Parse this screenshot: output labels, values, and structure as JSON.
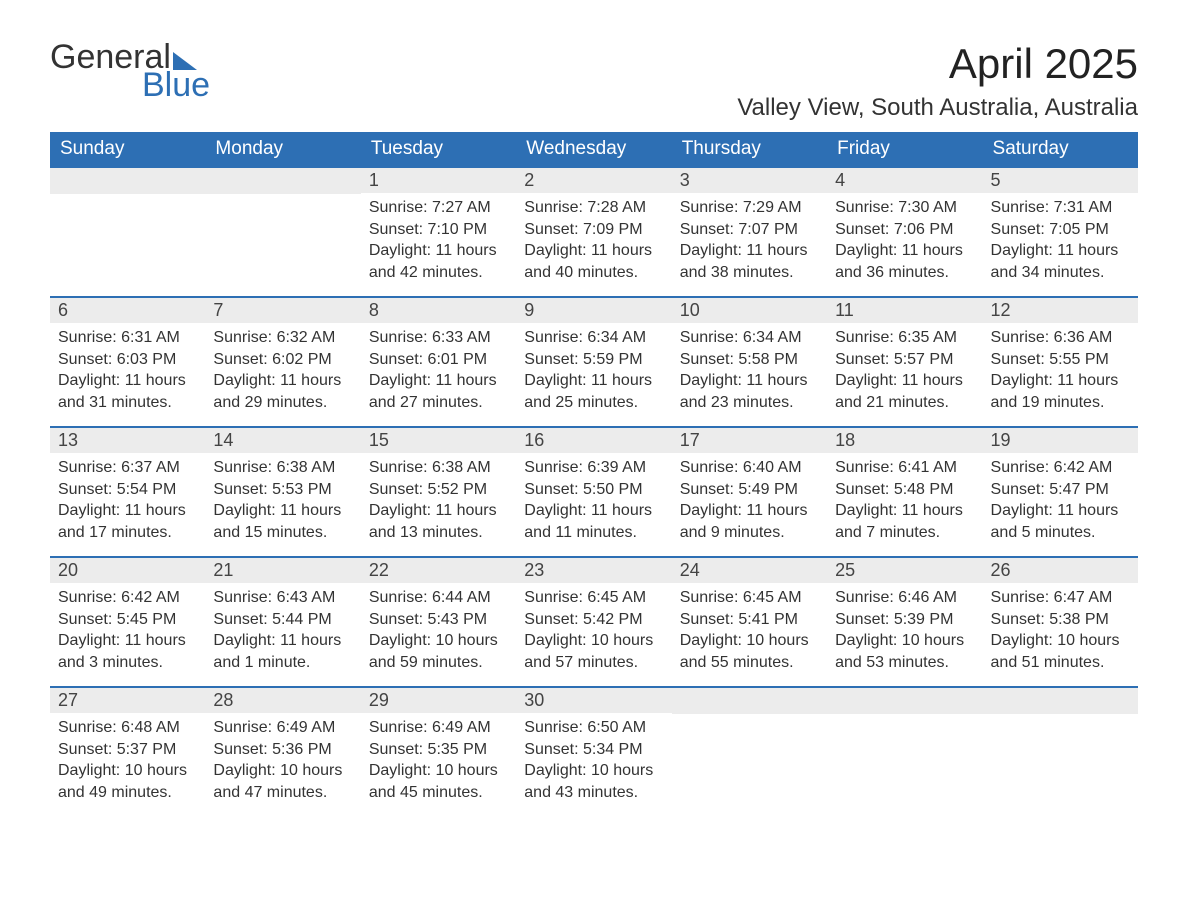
{
  "brand": {
    "word1": "General",
    "word2": "Blue"
  },
  "title": "April 2025",
  "location": "Valley View, South Australia, Australia",
  "colors": {
    "header_bg": "#2d6fb4",
    "header_text": "#ffffff",
    "daynum_bg": "#ececec",
    "border": "#2d6fb4",
    "text": "#333333",
    "background": "#ffffff"
  },
  "day_headers": [
    "Sunday",
    "Monday",
    "Tuesday",
    "Wednesday",
    "Thursday",
    "Friday",
    "Saturday"
  ],
  "weeks": [
    [
      null,
      null,
      {
        "n": "1",
        "sunrise": "7:27 AM",
        "sunset": "7:10 PM",
        "daylight": "11 hours and 42 minutes."
      },
      {
        "n": "2",
        "sunrise": "7:28 AM",
        "sunset": "7:09 PM",
        "daylight": "11 hours and 40 minutes."
      },
      {
        "n": "3",
        "sunrise": "7:29 AM",
        "sunset": "7:07 PM",
        "daylight": "11 hours and 38 minutes."
      },
      {
        "n": "4",
        "sunrise": "7:30 AM",
        "sunset": "7:06 PM",
        "daylight": "11 hours and 36 minutes."
      },
      {
        "n": "5",
        "sunrise": "7:31 AM",
        "sunset": "7:05 PM",
        "daylight": "11 hours and 34 minutes."
      }
    ],
    [
      {
        "n": "6",
        "sunrise": "6:31 AM",
        "sunset": "6:03 PM",
        "daylight": "11 hours and 31 minutes."
      },
      {
        "n": "7",
        "sunrise": "6:32 AM",
        "sunset": "6:02 PM",
        "daylight": "11 hours and 29 minutes."
      },
      {
        "n": "8",
        "sunrise": "6:33 AM",
        "sunset": "6:01 PM",
        "daylight": "11 hours and 27 minutes."
      },
      {
        "n": "9",
        "sunrise": "6:34 AM",
        "sunset": "5:59 PM",
        "daylight": "11 hours and 25 minutes."
      },
      {
        "n": "10",
        "sunrise": "6:34 AM",
        "sunset": "5:58 PM",
        "daylight": "11 hours and 23 minutes."
      },
      {
        "n": "11",
        "sunrise": "6:35 AM",
        "sunset": "5:57 PM",
        "daylight": "11 hours and 21 minutes."
      },
      {
        "n": "12",
        "sunrise": "6:36 AM",
        "sunset": "5:55 PM",
        "daylight": "11 hours and 19 minutes."
      }
    ],
    [
      {
        "n": "13",
        "sunrise": "6:37 AM",
        "sunset": "5:54 PM",
        "daylight": "11 hours and 17 minutes."
      },
      {
        "n": "14",
        "sunrise": "6:38 AM",
        "sunset": "5:53 PM",
        "daylight": "11 hours and 15 minutes."
      },
      {
        "n": "15",
        "sunrise": "6:38 AM",
        "sunset": "5:52 PM",
        "daylight": "11 hours and 13 minutes."
      },
      {
        "n": "16",
        "sunrise": "6:39 AM",
        "sunset": "5:50 PM",
        "daylight": "11 hours and 11 minutes."
      },
      {
        "n": "17",
        "sunrise": "6:40 AM",
        "sunset": "5:49 PM",
        "daylight": "11 hours and 9 minutes."
      },
      {
        "n": "18",
        "sunrise": "6:41 AM",
        "sunset": "5:48 PM",
        "daylight": "11 hours and 7 minutes."
      },
      {
        "n": "19",
        "sunrise": "6:42 AM",
        "sunset": "5:47 PM",
        "daylight": "11 hours and 5 minutes."
      }
    ],
    [
      {
        "n": "20",
        "sunrise": "6:42 AM",
        "sunset": "5:45 PM",
        "daylight": "11 hours and 3 minutes."
      },
      {
        "n": "21",
        "sunrise": "6:43 AM",
        "sunset": "5:44 PM",
        "daylight": "11 hours and 1 minute."
      },
      {
        "n": "22",
        "sunrise": "6:44 AM",
        "sunset": "5:43 PM",
        "daylight": "10 hours and 59 minutes."
      },
      {
        "n": "23",
        "sunrise": "6:45 AM",
        "sunset": "5:42 PM",
        "daylight": "10 hours and 57 minutes."
      },
      {
        "n": "24",
        "sunrise": "6:45 AM",
        "sunset": "5:41 PM",
        "daylight": "10 hours and 55 minutes."
      },
      {
        "n": "25",
        "sunrise": "6:46 AM",
        "sunset": "5:39 PM",
        "daylight": "10 hours and 53 minutes."
      },
      {
        "n": "26",
        "sunrise": "6:47 AM",
        "sunset": "5:38 PM",
        "daylight": "10 hours and 51 minutes."
      }
    ],
    [
      {
        "n": "27",
        "sunrise": "6:48 AM",
        "sunset": "5:37 PM",
        "daylight": "10 hours and 49 minutes."
      },
      {
        "n": "28",
        "sunrise": "6:49 AM",
        "sunset": "5:36 PM",
        "daylight": "10 hours and 47 minutes."
      },
      {
        "n": "29",
        "sunrise": "6:49 AM",
        "sunset": "5:35 PM",
        "daylight": "10 hours and 45 minutes."
      },
      {
        "n": "30",
        "sunrise": "6:50 AM",
        "sunset": "5:34 PM",
        "daylight": "10 hours and 43 minutes."
      },
      null,
      null,
      null
    ]
  ],
  "labels": {
    "sunrise": "Sunrise: ",
    "sunset": "Sunset: ",
    "daylight": "Daylight: "
  }
}
